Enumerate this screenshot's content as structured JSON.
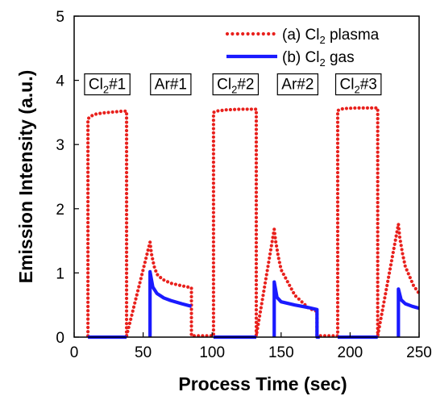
{
  "chart_data": {
    "type": "line",
    "title": "",
    "xlabel": "Process Time (sec)",
    "ylabel": "Emission Intensity (a.u.)",
    "xlim": [
      0,
      250
    ],
    "ylim": [
      0,
      5
    ],
    "xticks": [
      0,
      50,
      100,
      150,
      200,
      250
    ],
    "yticks": [
      0,
      1,
      2,
      3,
      4,
      5
    ],
    "grid": false,
    "legend_position": "top-right",
    "series": [
      {
        "name": "(a) Cl2 plasma",
        "legend_main": "(a) Cl",
        "legend_sub": "2",
        "legend_tail": " plasma",
        "style": "dotted",
        "color": "#e8201c",
        "points": [
          [
            10,
            0.02
          ],
          [
            10,
            3.4
          ],
          [
            12,
            3.44
          ],
          [
            15,
            3.47
          ],
          [
            20,
            3.49
          ],
          [
            25,
            3.5
          ],
          [
            30,
            3.51
          ],
          [
            35,
            3.52
          ],
          [
            38,
            3.52
          ],
          [
            38,
            0.02
          ],
          [
            55,
            1.48
          ],
          [
            56,
            1.3
          ],
          [
            58,
            1.1
          ],
          [
            60,
            0.98
          ],
          [
            64,
            0.9
          ],
          [
            70,
            0.84
          ],
          [
            78,
            0.8
          ],
          [
            85,
            0.77
          ],
          [
            85,
            0.02
          ],
          [
            101,
            0.02
          ],
          [
            101,
            3.5
          ],
          [
            103,
            3.52
          ],
          [
            110,
            3.54
          ],
          [
            120,
            3.55
          ],
          [
            128,
            3.55
          ],
          [
            132,
            3.55
          ],
          [
            132,
            0.02
          ],
          [
            145,
            1.68
          ],
          [
            146,
            1.5
          ],
          [
            148,
            1.25
          ],
          [
            150,
            1.05
          ],
          [
            155,
            0.85
          ],
          [
            160,
            0.65
          ],
          [
            170,
            0.45
          ],
          [
            176,
            0.4
          ],
          [
            176,
            0.02
          ],
          [
            191,
            0.02
          ],
          [
            191,
            3.53
          ],
          [
            195,
            3.56
          ],
          [
            205,
            3.57
          ],
          [
            215,
            3.57
          ],
          [
            220,
            3.57
          ],
          [
            220,
            0.02
          ],
          [
            235,
            1.76
          ],
          [
            236,
            1.55
          ],
          [
            238,
            1.3
          ],
          [
            240,
            1.1
          ],
          [
            243,
            0.95
          ],
          [
            246,
            0.8
          ],
          [
            250,
            0.68
          ]
        ]
      },
      {
        "name": "(b) Cl2 gas",
        "legend_main": "(b) Cl",
        "legend_sub": "2",
        "legend_tail": " gas",
        "style": "solid",
        "color": "#1a1aff",
        "segments": [
          [
            [
              10,
              0.0
            ],
            [
              38,
              0.0
            ]
          ],
          [
            [
              55,
              0.0
            ],
            [
              55,
              1.02
            ],
            [
              57,
              0.78
            ],
            [
              60,
              0.68
            ],
            [
              65,
              0.61
            ],
            [
              70,
              0.57
            ],
            [
              78,
              0.52
            ],
            [
              85,
              0.48
            ]
          ],
          [
            [
              101,
              0.0
            ],
            [
              132,
              0.0
            ]
          ],
          [
            [
              145,
              0.0
            ],
            [
              145,
              0.86
            ],
            [
              147,
              0.62
            ],
            [
              150,
              0.55
            ],
            [
              160,
              0.5
            ],
            [
              170,
              0.46
            ],
            [
              176,
              0.43
            ],
            [
              176,
              0.0
            ],
            [
              178,
              0.0
            ]
          ],
          [
            [
              191,
              0.0
            ],
            [
              220,
              0.0
            ]
          ],
          [
            [
              235,
              0.0
            ],
            [
              235,
              0.75
            ],
            [
              237,
              0.58
            ],
            [
              240,
              0.52
            ],
            [
              245,
              0.48
            ],
            [
              250,
              0.45
            ]
          ]
        ]
      }
    ],
    "annotations": [
      {
        "main": "Cl",
        "sub": "2",
        "tail": "#1",
        "x": 24
      },
      {
        "main": "Ar#1",
        "sub": "",
        "tail": "",
        "x": 70
      },
      {
        "main": "Cl",
        "sub": "2",
        "tail": "#2",
        "x": 117
      },
      {
        "main": "Ar#2",
        "sub": "",
        "tail": "",
        "x": 162
      },
      {
        "main": "Cl",
        "sub": "2",
        "tail": "#3",
        "x": 206
      }
    ],
    "annotation_y": 3.95
  }
}
